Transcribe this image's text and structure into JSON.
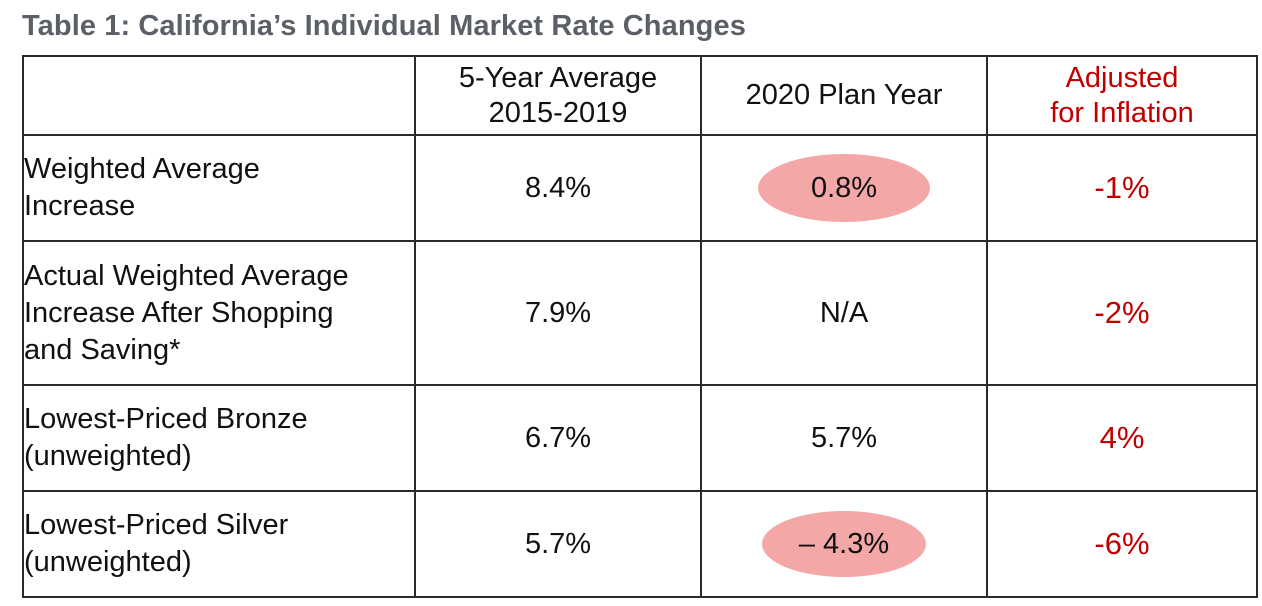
{
  "title": "Table 1: California’s Individual Market Rate Changes",
  "columns": {
    "blank": "",
    "five_year_line1": "5-Year Average",
    "five_year_line2": "2015-2019",
    "plan_year": "2020 Plan Year",
    "adjusted_line1": "Adjusted",
    "adjusted_line2": "for Inflation"
  },
  "rows": [
    {
      "label_lines": [
        "Weighted Average",
        "Increase"
      ],
      "five_year": "8.4%",
      "plan_year": "0.8%",
      "plan_year_highlighted": true,
      "adjusted": "-1%"
    },
    {
      "label_lines": [
        "Actual Weighted Average",
        "Increase After Shopping",
        "and Saving*"
      ],
      "five_year": "7.9%",
      "plan_year": "N/A",
      "plan_year_highlighted": false,
      "adjusted": "-2%"
    },
    {
      "label_lines": [
        "Lowest-Priced Bronze",
        "(unweighted)"
      ],
      "five_year": "6.7%",
      "plan_year": "5.7%",
      "plan_year_highlighted": false,
      "adjusted": "4%"
    },
    {
      "label_lines": [
        "Lowest-Priced Silver",
        "(unweighted)"
      ],
      "five_year": "5.7%",
      "plan_year": "– 4.3%",
      "plan_year_highlighted": true,
      "adjusted": "-6%"
    }
  ],
  "colors": {
    "title": "#5b6067",
    "adjusted_text": "#c00000",
    "highlight_oval": "#f4a7a7",
    "border": "#2a2a2a"
  }
}
